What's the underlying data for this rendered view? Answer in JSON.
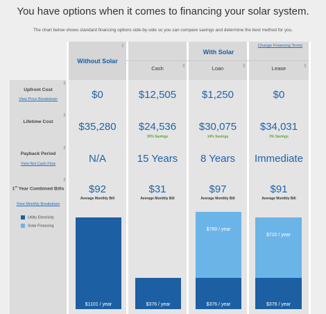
{
  "header": {
    "title": "You have options when it comes to financing your solar system.",
    "subtitle": "The chart below shows standard financing options side-by-side so you can compare savings and determine the best method for you."
  },
  "columns": {
    "without_solar": "Without Solar",
    "with_solar": "With Solar",
    "cash": "Cash",
    "loan": "Loan",
    "lease": "Lease",
    "change_terms": "Change Financing Terms"
  },
  "rows": {
    "upfront": {
      "label": "Upfront Cost",
      "link": "View Price Breakdown",
      "values": [
        "$0",
        "$12,505",
        "$1,250",
        "$0"
      ]
    },
    "lifetime": {
      "label": "Lifetime Cost",
      "values": [
        "$35,280",
        "$24,536",
        "$30,075",
        "$34,031"
      ],
      "savings": [
        "",
        "30% Savings",
        "14% Savings",
        "3% Savings"
      ]
    },
    "payback": {
      "label": "Payback Period",
      "link": "View Net Cash Flow",
      "values": [
        "N/A",
        "15 Years",
        "8 Years",
        "Immediate"
      ]
    },
    "bill": {
      "label_sup": "st",
      "label_pre": "1",
      "label": "Year Combined Bills",
      "link": "View Monthly Breakdown",
      "values": [
        "$92",
        "$31",
        "$97",
        "$91"
      ],
      "avg_label": "Average Monthly Bill"
    }
  },
  "legend": {
    "utility": "Utility Electricity",
    "financing": "Solar Financing",
    "utility_color": "#1c5fa3",
    "financing_color": "#6ab4e8"
  },
  "chart_data": {
    "type": "bar",
    "categories": [
      "Without Solar",
      "Cash",
      "Loan",
      "Lease"
    ],
    "series": [
      {
        "name": "Utility Electricity",
        "values": [
          1101,
          376,
          376,
          376
        ]
      },
      {
        "name": "Solar Financing",
        "values": [
          0,
          0,
          789,
          720
        ]
      }
    ],
    "unit_label": "/ year",
    "labels": {
      "without_util": "$1101 / year",
      "cash_util": "$376 / year",
      "loan_util": "$376 / year",
      "loan_fin": "$789 / year",
      "lease_util": "$376 / year",
      "lease_fin": "$720 / year"
    },
    "ylim": [
      0,
      1165
    ]
  }
}
